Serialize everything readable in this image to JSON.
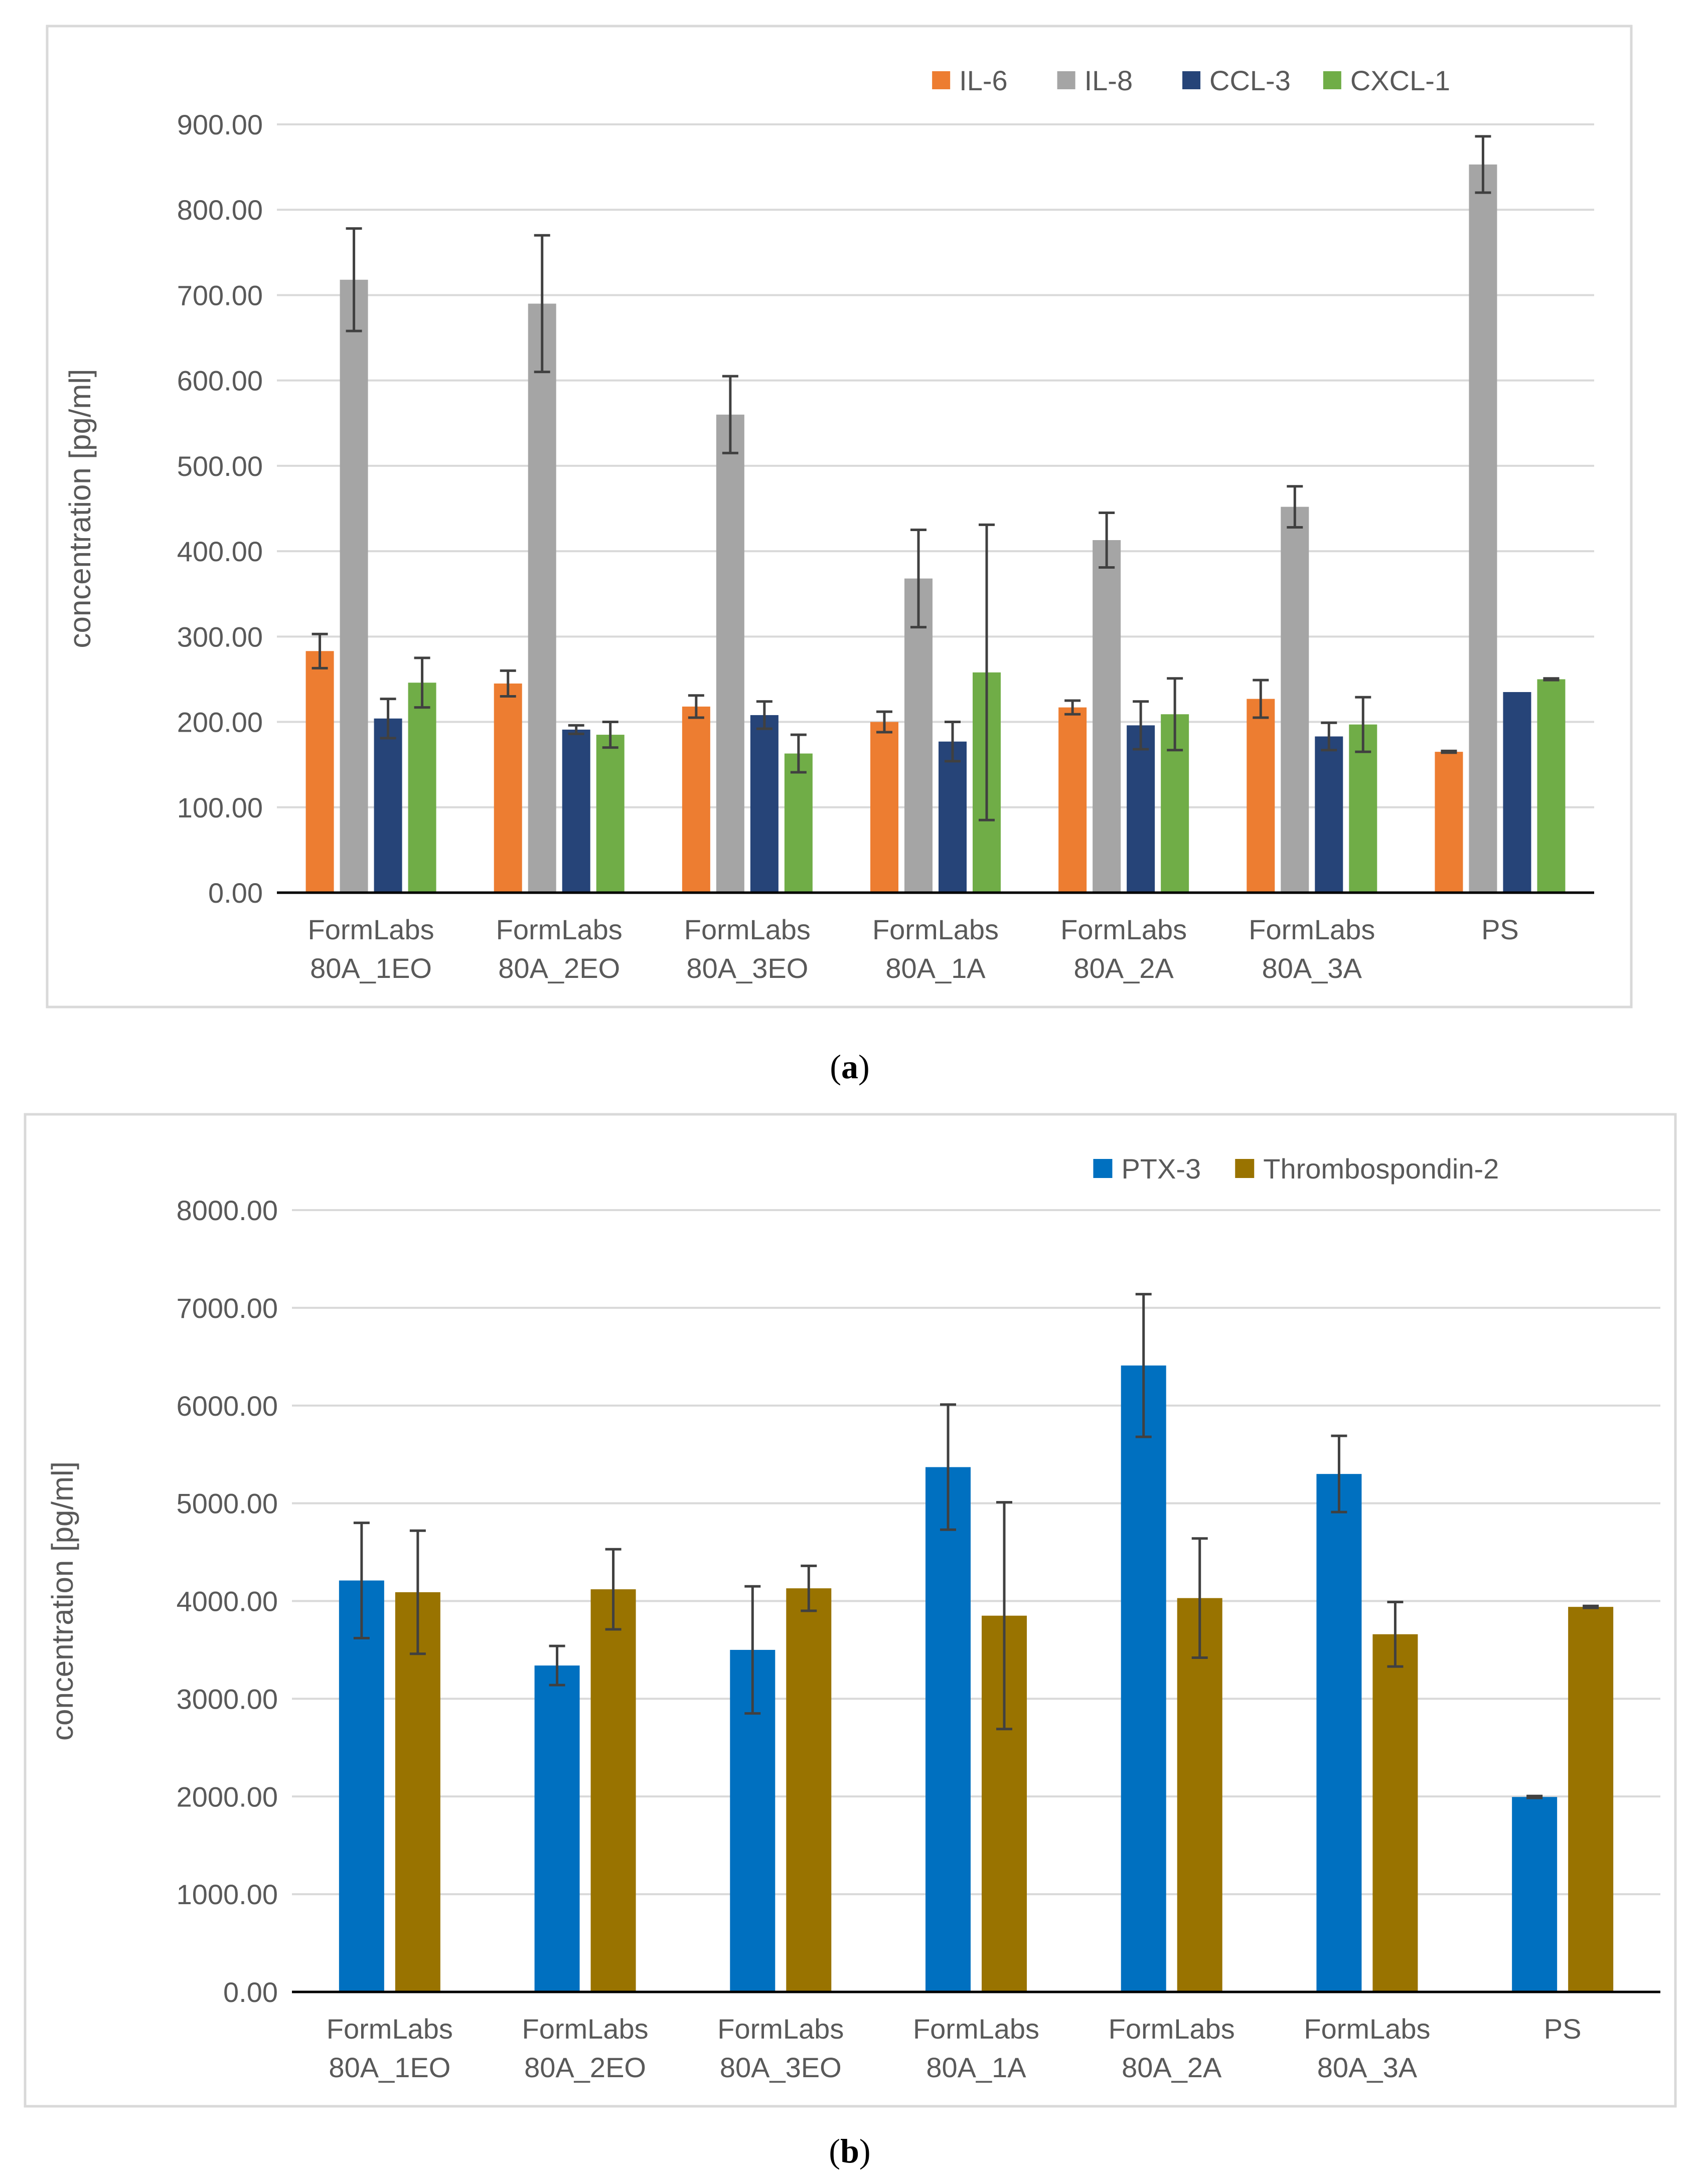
{
  "colors": {
    "IL-6": "#ED7D31",
    "IL-8": "#A5A5A5",
    "CCL-3": "#264478",
    "CXCL-1": "#70AD47",
    "PTX-3": "#0070C0",
    "Thrombospondin-2": "#997300",
    "grid": "#D9D9D9",
    "axis": "#000000",
    "text": "#595959",
    "error_bar": "#404040",
    "frame": "#D9D9D9"
  },
  "captions": {
    "a": "a",
    "b": "b"
  },
  "chart_data": [
    {
      "id": "a",
      "type": "bar",
      "title": "",
      "xlabel": "",
      "ylabel": "concentration [pg/ml]",
      "ylim": [
        0,
        900
      ],
      "yticks": [
        "0.00",
        "100.00",
        "200.00",
        "300.00",
        "400.00",
        "500.00",
        "600.00",
        "700.00",
        "800.00",
        "900.00"
      ],
      "categories": [
        [
          "FormLabs",
          "80A_1EO"
        ],
        [
          "FormLabs",
          "80A_2EO"
        ],
        [
          "FormLabs",
          "80A_3EO"
        ],
        [
          "FormLabs",
          "80A_1A"
        ],
        [
          "FormLabs",
          "80A_2A"
        ],
        [
          "FormLabs",
          "80A_3A"
        ],
        [
          "PS"
        ]
      ],
      "legend_position": "top-right",
      "series": [
        {
          "name": "IL-6",
          "values": [
            283,
            245,
            218,
            200,
            217,
            227,
            165
          ],
          "errors": [
            20,
            15,
            13,
            12,
            8,
            22,
            1
          ]
        },
        {
          "name": "IL-8",
          "values": [
            718,
            690,
            560,
            368,
            413,
            452,
            853
          ],
          "errors": [
            60,
            80,
            45,
            57,
            32,
            24,
            33
          ]
        },
        {
          "name": "CCL-3",
          "values": [
            204,
            191,
            208,
            177,
            196,
            183,
            235
          ],
          "errors": [
            23,
            5,
            16,
            23,
            28,
            16,
            0
          ]
        },
        {
          "name": "CXCL-1",
          "values": [
            246,
            185,
            163,
            258,
            209,
            197,
            250
          ],
          "errors": [
            29,
            15,
            22,
            173,
            42,
            32,
            1
          ]
        }
      ]
    },
    {
      "id": "b",
      "type": "bar",
      "title": "",
      "xlabel": "",
      "ylabel": "concentration [pg/ml]",
      "ylim": [
        0,
        8000
      ],
      "yticks": [
        "0.00",
        "1000.00",
        "2000.00",
        "3000.00",
        "4000.00",
        "5000.00",
        "6000.00",
        "7000.00",
        "8000.00"
      ],
      "categories": [
        [
          "FormLabs",
          "80A_1EO"
        ],
        [
          "FormLabs",
          "80A_2EO"
        ],
        [
          "FormLabs",
          "80A_3EO"
        ],
        [
          "FormLabs",
          "80A_1A"
        ],
        [
          "FormLabs",
          "80A_2A"
        ],
        [
          "FormLabs",
          "80A_3A"
        ],
        [
          "PS"
        ]
      ],
      "legend_position": "top-right",
      "series": [
        {
          "name": "PTX-3",
          "values": [
            4210,
            3340,
            3500,
            5370,
            6410,
            5300,
            1995
          ],
          "errors": [
            590,
            200,
            650,
            640,
            730,
            390,
            10
          ]
        },
        {
          "name": "Thrombospondin-2",
          "values": [
            4090,
            4120,
            4130,
            3850,
            4030,
            3660,
            3940
          ],
          "errors": [
            630,
            410,
            230,
            1160,
            610,
            330,
            10
          ]
        }
      ]
    }
  ]
}
